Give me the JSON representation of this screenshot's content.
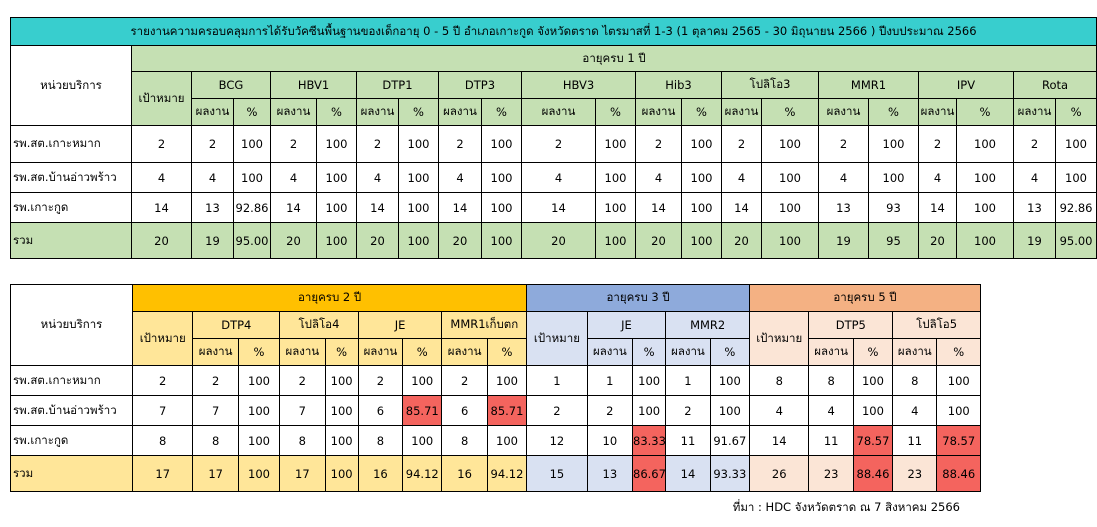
{
  "table1": {
    "title": "รายงานความครอบคลุมการได้รับวัคซีนพื้นฐานของเด็กอายุ 0 - 5 ปี อำเภอเกาะกูด จังหวัดตราด ไตรมาสที่ 1-3 (1 ตุลาคม 2565 - 30 มิถุนายน 2566 ) ปีงบประมาณ 2566",
    "unit_header": "หน่วยบริการ",
    "age_group": "อายุครบ 1 ปี",
    "target_label": "เป้าหมาย",
    "result_label": "ผลงาน",
    "pct_label": "%",
    "vaccines": [
      "BCG",
      "HBV1",
      "DTP1",
      "DTP3",
      "HBV3",
      "Hib3",
      "โปลิโอ3",
      "MMR1",
      "IPV",
      "Rota"
    ],
    "rows": [
      {
        "name": "รพ.สต.เกาะหมาก",
        "target": "2",
        "cells": [
          [
            "2",
            "100"
          ],
          [
            "2",
            "100"
          ],
          [
            "2",
            "100"
          ],
          [
            "2",
            "100"
          ],
          [
            "2",
            "100"
          ],
          [
            "2",
            "100"
          ],
          [
            "2",
            "100"
          ],
          [
            "2",
            "100"
          ],
          [
            "2",
            "100"
          ],
          [
            "2",
            "100"
          ]
        ]
      },
      {
        "name": "รพ.สต.บ้านอ่าวพร้าว",
        "target": "4",
        "cells": [
          [
            "4",
            "100"
          ],
          [
            "4",
            "100"
          ],
          [
            "4",
            "100"
          ],
          [
            "4",
            "100"
          ],
          [
            "4",
            "100"
          ],
          [
            "4",
            "100"
          ],
          [
            "4",
            "100"
          ],
          [
            "4",
            "100"
          ],
          [
            "4",
            "100"
          ],
          [
            "4",
            "100"
          ]
        ]
      },
      {
        "name": "รพ.เกาะกูด",
        "target": "14",
        "cells": [
          [
            "13",
            "92.86"
          ],
          [
            "14",
            "100"
          ],
          [
            "14",
            "100"
          ],
          [
            "14",
            "100"
          ],
          [
            "14",
            "100"
          ],
          [
            "14",
            "100"
          ],
          [
            "14",
            "100"
          ],
          [
            "13",
            "93"
          ],
          [
            "14",
            "100"
          ],
          [
            "13",
            "92.86"
          ]
        ]
      }
    ],
    "total": {
      "name": "รวม",
      "target": "20",
      "cells": [
        [
          "19",
          "95.00"
        ],
        [
          "20",
          "100"
        ],
        [
          "20",
          "100"
        ],
        [
          "20",
          "100"
        ],
        [
          "20",
          "100"
        ],
        [
          "20",
          "100"
        ],
        [
          "20",
          "100"
        ],
        [
          "19",
          "95"
        ],
        [
          "20",
          "100"
        ],
        [
          "19",
          "95.00"
        ]
      ]
    }
  },
  "table2": {
    "unit_header": "หน่วยบริการ",
    "target_label": "เป้าหมาย",
    "result_label": "ผลงาน",
    "pct_label": "%",
    "age2": {
      "label": "อายุครบ 2 ปี",
      "vaccines": [
        "DTP4",
        "โปลิโอ4",
        "JE",
        "MMR1เก็บตก"
      ]
    },
    "age3": {
      "label": "อายุครบ 3 ปี",
      "vaccines": [
        "JE",
        "MMR2"
      ]
    },
    "age5": {
      "label": "อายุครบ 5 ปี",
      "vaccines": [
        "DTP5",
        "โปลิโอ5"
      ]
    },
    "rows": [
      {
        "name": "รพ.สต.เกาะหมาก",
        "a2": {
          "target": "2",
          "cells": [
            [
              "2",
              "100"
            ],
            [
              "2",
              "100"
            ],
            [
              "2",
              "100"
            ],
            [
              "2",
              "100"
            ]
          ]
        },
        "a3": {
          "target": "1",
          "cells": [
            [
              "1",
              "100"
            ],
            [
              "1",
              "100"
            ]
          ]
        },
        "a5": {
          "target": "8",
          "cells": [
            [
              "8",
              "100"
            ],
            [
              "8",
              "100"
            ]
          ]
        }
      },
      {
        "name": "รพ.สต.บ้านอ่าวพร้าว",
        "a2": {
          "target": "7",
          "cells": [
            [
              "7",
              "100"
            ],
            [
              "7",
              "100"
            ],
            [
              "6",
              "85.71"
            ],
            [
              "6",
              "85.71"
            ]
          ]
        },
        "a3": {
          "target": "2",
          "cells": [
            [
              "2",
              "100"
            ],
            [
              "2",
              "100"
            ]
          ]
        },
        "a5": {
          "target": "4",
          "cells": [
            [
              "4",
              "100"
            ],
            [
              "4",
              "100"
            ]
          ]
        }
      },
      {
        "name": "รพ.เกาะกูด",
        "a2": {
          "target": "8",
          "cells": [
            [
              "8",
              "100"
            ],
            [
              "8",
              "100"
            ],
            [
              "8",
              "100"
            ],
            [
              "8",
              "100"
            ]
          ]
        },
        "a3": {
          "target": "12",
          "cells": [
            [
              "10",
              "83.33"
            ],
            [
              "11",
              "91.67"
            ]
          ]
        },
        "a5": {
          "target": "14",
          "cells": [
            [
              "11",
              "78.57"
            ],
            [
              "11",
              "78.57"
            ]
          ]
        }
      }
    ],
    "total": {
      "name": "รวม",
      "a2": {
        "target": "17",
        "cells": [
          [
            "17",
            "100"
          ],
          [
            "17",
            "100"
          ],
          [
            "16",
            "94.12"
          ],
          [
            "16",
            "94.12"
          ]
        ]
      },
      "a3": {
        "target": "15",
        "cells": [
          [
            "13",
            "86.67"
          ],
          [
            "14",
            "93.33"
          ]
        ]
      },
      "a5": {
        "target": "26",
        "cells": [
          [
            "23",
            "88.46"
          ],
          [
            "23",
            "88.46"
          ]
        ]
      }
    },
    "highlight_color": "#f4645e"
  },
  "source_note": "ที่มา : HDC จังหวัดตราด ณ 7 สิงหาคม 2566"
}
